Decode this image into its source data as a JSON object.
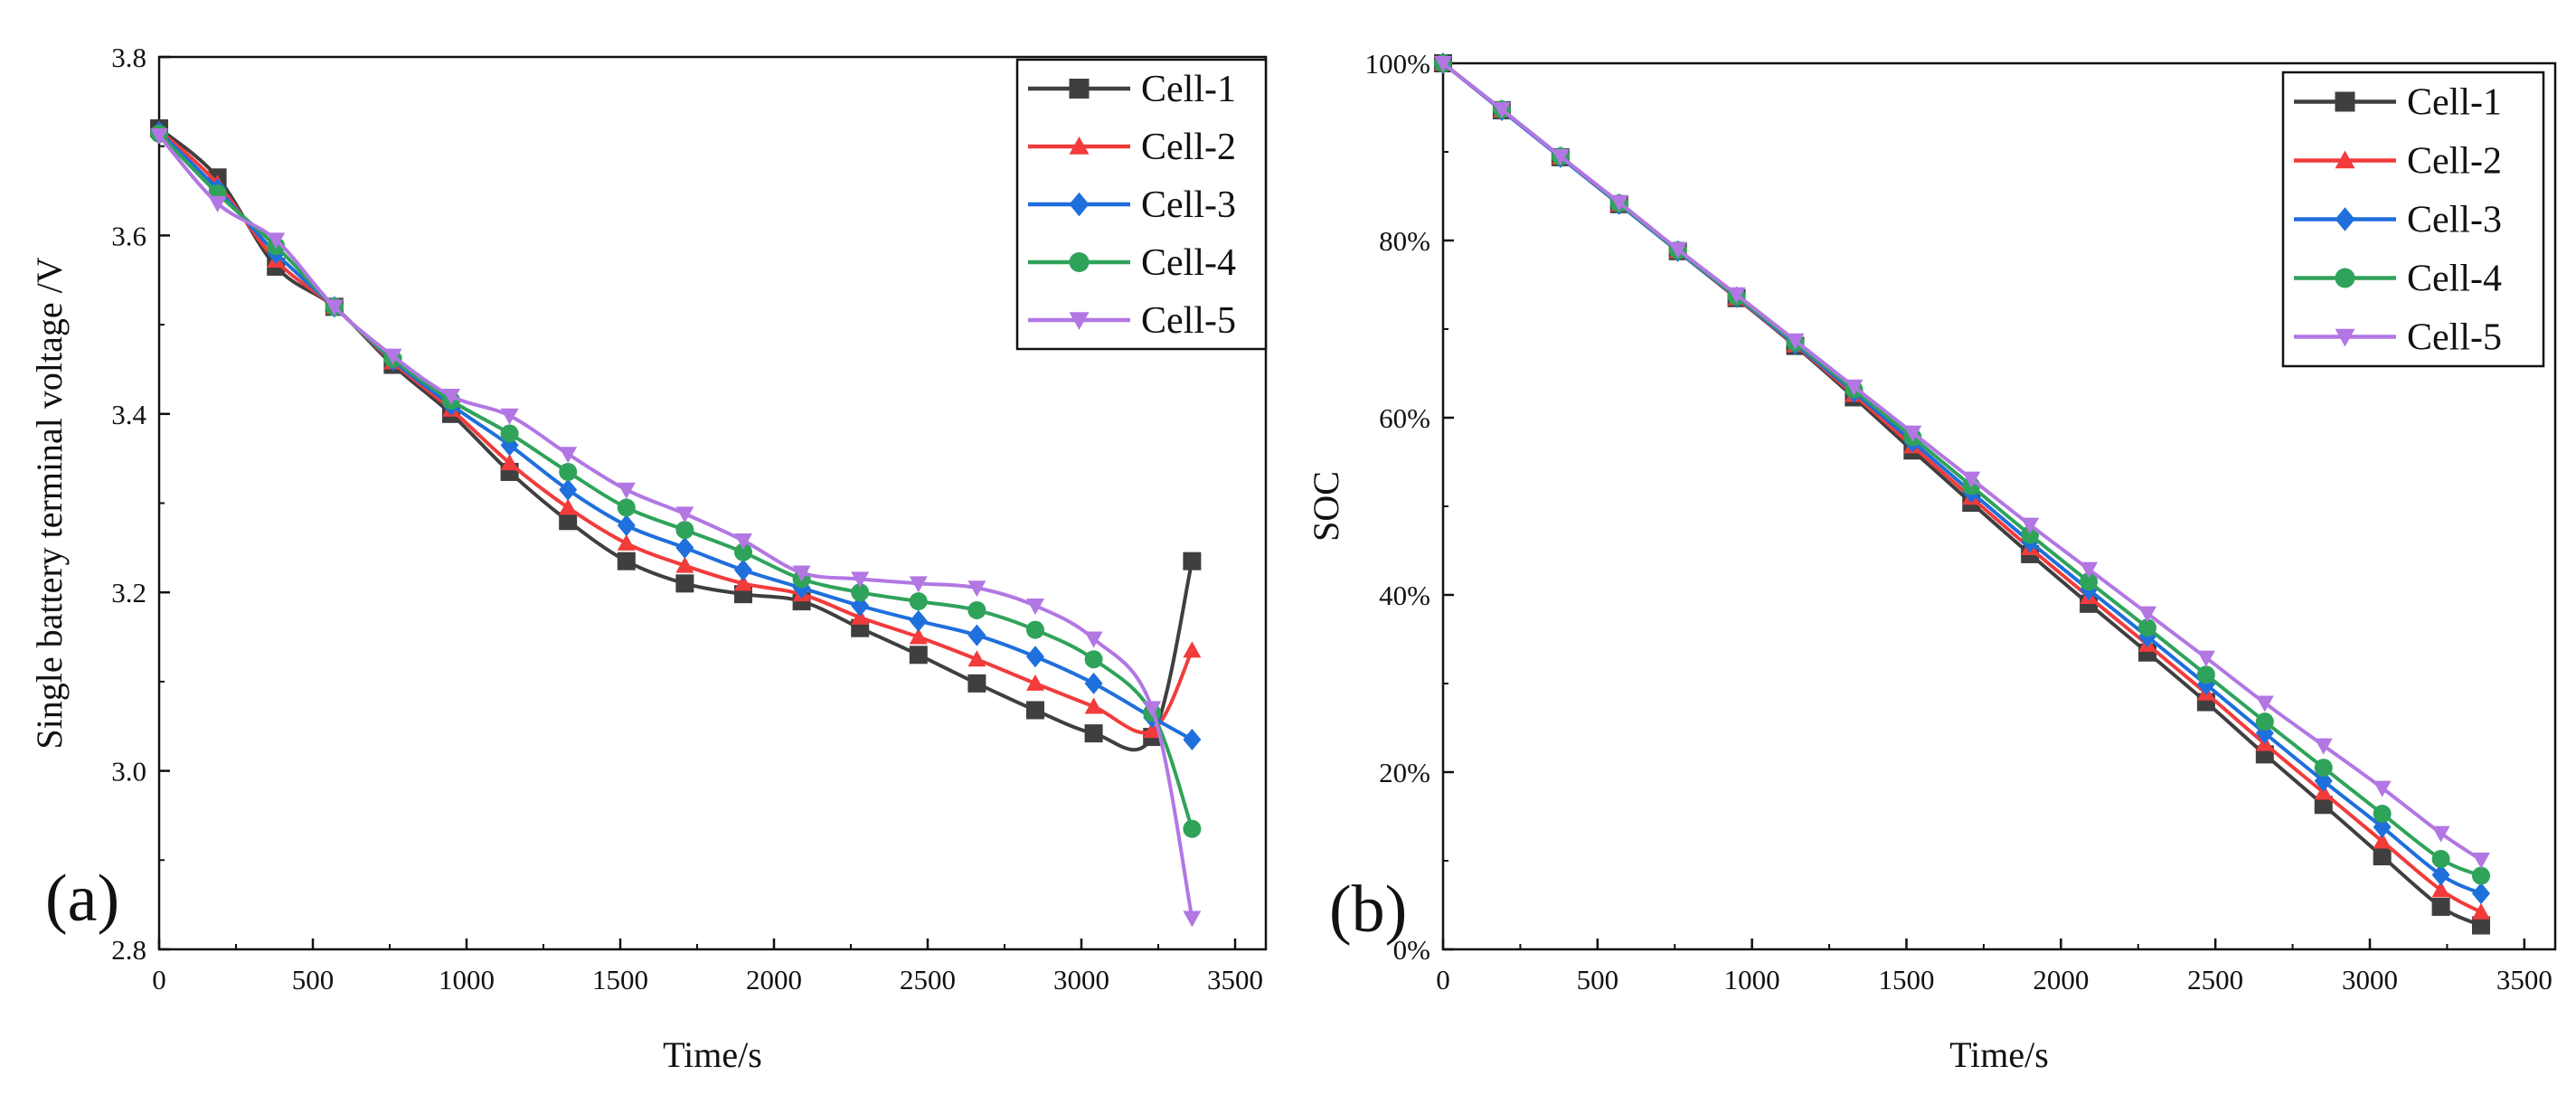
{
  "chart_data": [
    {
      "type": "line",
      "panel_label": "(a)",
      "title": "",
      "xlabel": "Time/s",
      "ylabel": "Single battery terminal voltage /V",
      "xlim": [
        0,
        3600
      ],
      "ylim": [
        2.8,
        3.8
      ],
      "xticks": [
        0,
        500,
        1000,
        1500,
        2000,
        2500,
        3000,
        3500
      ],
      "yticks": [
        2.8,
        3.0,
        3.2,
        3.4,
        3.6,
        3.8
      ],
      "xtick_labels": [
        "0",
        "500",
        "1000",
        "1500",
        "2000",
        "2500",
        "3000",
        "3500"
      ],
      "ytick_labels": [
        "2.8",
        "3.0",
        "3.2",
        "3.4",
        "3.6",
        "3.8"
      ],
      "grid": false,
      "legend_position": "top-right",
      "x": [
        0,
        190,
        380,
        570,
        760,
        950,
        1140,
        1330,
        1520,
        1710,
        1900,
        2090,
        2280,
        2470,
        2660,
        2850,
        3040,
        3230,
        3360
      ],
      "series": [
        {
          "name": "Cell-1",
          "color": "#3f3f3f",
          "marker": "square",
          "values": [
            3.72,
            3.665,
            3.565,
            3.52,
            3.455,
            3.4,
            3.335,
            3.28,
            3.235,
            3.21,
            3.198,
            3.19,
            3.16,
            3.13,
            3.098,
            3.068,
            3.042,
            3.038,
            3.235
          ]
        },
        {
          "name": "Cell-2",
          "color": "#f23b3b",
          "marker": "triangle-up",
          "values": [
            3.718,
            3.658,
            3.572,
            3.52,
            3.458,
            3.405,
            3.345,
            3.295,
            3.255,
            3.23,
            3.21,
            3.198,
            3.172,
            3.15,
            3.125,
            3.098,
            3.072,
            3.045,
            3.135
          ]
        },
        {
          "name": "Cell-3",
          "color": "#1f6fdc",
          "marker": "diamond",
          "values": [
            3.716,
            3.652,
            3.58,
            3.52,
            3.46,
            3.41,
            3.365,
            3.315,
            3.275,
            3.25,
            3.225,
            3.205,
            3.185,
            3.168,
            3.152,
            3.128,
            3.098,
            3.06,
            3.035
          ]
        },
        {
          "name": "Cell-4",
          "color": "#2fa35a",
          "marker": "circle",
          "values": [
            3.714,
            3.647,
            3.588,
            3.52,
            3.462,
            3.415,
            3.378,
            3.335,
            3.295,
            3.27,
            3.245,
            3.215,
            3.2,
            3.19,
            3.18,
            3.158,
            3.125,
            3.065,
            2.935
          ]
        },
        {
          "name": "Cell-5",
          "color": "#b277e3",
          "marker": "triangle-down",
          "values": [
            3.712,
            3.636,
            3.595,
            3.52,
            3.465,
            3.42,
            3.398,
            3.355,
            3.315,
            3.288,
            3.258,
            3.222,
            3.215,
            3.21,
            3.205,
            3.185,
            3.148,
            3.07,
            2.835
          ]
        }
      ]
    },
    {
      "type": "line",
      "panel_label": "(b)",
      "title": "",
      "xlabel": "Time/s",
      "ylabel": "SOC",
      "xlim": [
        0,
        3600
      ],
      "ylim": [
        0,
        100
      ],
      "xticks": [
        0,
        500,
        1000,
        1500,
        2000,
        2500,
        3000,
        3500
      ],
      "yticks": [
        0,
        20,
        40,
        60,
        80,
        100
      ],
      "xtick_labels": [
        "0",
        "500",
        "1000",
        "1500",
        "2000",
        "2500",
        "3000",
        "3500"
      ],
      "ytick_labels": [
        "0%",
        "20%",
        "40%",
        "60%",
        "80%",
        "100%"
      ],
      "grid": false,
      "legend_position": "top-right",
      "x": [
        0,
        190,
        380,
        570,
        760,
        950,
        1140,
        1330,
        1520,
        1710,
        1900,
        2090,
        2280,
        2470,
        2660,
        2850,
        3040,
        3230,
        3360
      ],
      "series": [
        {
          "name": "Cell-1",
          "color": "#3f3f3f",
          "marker": "square",
          "values": [
            100,
            94.7,
            89.4,
            84.1,
            78.8,
            73.5,
            68.1,
            62.3,
            56.3,
            50.4,
            44.6,
            39.0,
            33.5,
            27.9,
            22.0,
            16.3,
            10.5,
            4.8,
            2.7
          ]
        },
        {
          "name": "Cell-2",
          "color": "#f23b3b",
          "marker": "triangle-up",
          "values": [
            100,
            94.7,
            89.4,
            84.1,
            78.8,
            73.5,
            68.2,
            62.6,
            56.8,
            51.0,
            45.3,
            39.8,
            34.4,
            28.9,
            23.2,
            17.7,
            12.2,
            6.7,
            4.2
          ]
        },
        {
          "name": "Cell-3",
          "color": "#1f6fdc",
          "marker": "diamond",
          "values": [
            100,
            94.7,
            89.4,
            84.1,
            78.8,
            73.6,
            68.3,
            62.9,
            57.3,
            51.6,
            46.0,
            40.6,
            35.3,
            29.9,
            24.4,
            19.0,
            13.8,
            8.4,
            6.3
          ]
        },
        {
          "name": "Cell-4",
          "color": "#2fa35a",
          "marker": "circle",
          "values": [
            100,
            94.8,
            89.5,
            84.2,
            78.9,
            73.7,
            68.5,
            63.2,
            57.8,
            52.3,
            46.8,
            41.5,
            36.3,
            31.0,
            25.7,
            20.5,
            15.3,
            10.2,
            8.3
          ]
        },
        {
          "name": "Cell-5",
          "color": "#b277e3",
          "marker": "triangle-down",
          "values": [
            100,
            94.8,
            89.5,
            84.3,
            79.0,
            73.9,
            68.7,
            63.5,
            58.3,
            53.1,
            47.9,
            42.9,
            37.9,
            32.9,
            27.8,
            23.0,
            18.2,
            13.1,
            10.1
          ]
        }
      ]
    }
  ]
}
